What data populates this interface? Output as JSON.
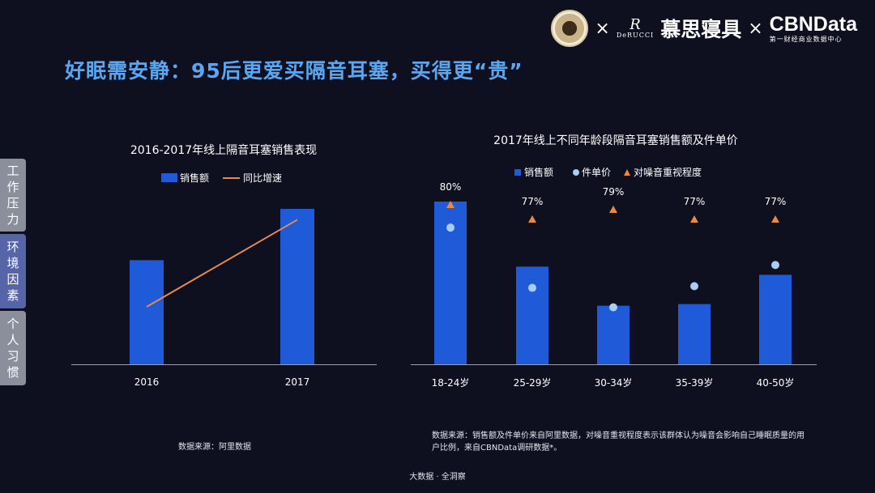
{
  "slide": {
    "title": "好眠需安静：95后更爱买隔音耳塞，买得更“贵”",
    "footer": "大数据 · 全洞察"
  },
  "logos": {
    "times1": "×",
    "times2": "×",
    "derucci_mark": "R",
    "derucci_text": "DeRUCCI",
    "derucci_cn": "慕思寝具",
    "cbn_big": "CBNData",
    "cbn_small": "第一财经商业数据中心"
  },
  "side_tabs": [
    "工作压力",
    "环境因素",
    "个人习惯"
  ],
  "left_chart": {
    "source": "数据来源：阿里数据"
  },
  "right_chart": {
    "source": "数据来源：销售额及件单价来自阿里数据，对噪音重视程度表示该群体认为噪音会影响自己睡眠质量的用户比例，来自CBNData调研数据*。"
  },
  "colors": {
    "bar": "#1f5ad8",
    "line": "#e9894b",
    "dot": "#a9cdf5",
    "triangle": "#ec8a3c",
    "title": "#5aa6f0"
  },
  "chart_data": [
    {
      "type": "bar",
      "title": "2016-2017年线上隔音耳塞销售表现",
      "categories": [
        "2016",
        "2017"
      ],
      "series": [
        {
          "name": "销售额",
          "kind": "bar",
          "values": [
            0.67,
            1.0
          ]
        },
        {
          "name": "同比增速",
          "kind": "line",
          "values": [
            0.37,
            0.93
          ]
        }
      ],
      "legend": "top",
      "grid": false
    },
    {
      "type": "bar",
      "title": "2017年线上不同年龄段隔音耳塞销售额及件单价",
      "categories": [
        "18-24岁",
        "25-29岁",
        "30-34岁",
        "35-39岁",
        "40-50岁"
      ],
      "series": [
        {
          "name": "销售额",
          "kind": "bar",
          "values": [
            1.0,
            0.6,
            0.36,
            0.37,
            0.55
          ]
        },
        {
          "name": "件单价",
          "kind": "scatter",
          "values": [
            0.84,
            0.47,
            0.35,
            0.48,
            0.61
          ]
        },
        {
          "name": "对噪音重视程度",
          "kind": "marker",
          "values": [
            80,
            77,
            79,
            77,
            77
          ],
          "labels": [
            "80%",
            "77%",
            "79%",
            "77%",
            "77%"
          ]
        }
      ],
      "legend": "top",
      "grid": false
    }
  ]
}
